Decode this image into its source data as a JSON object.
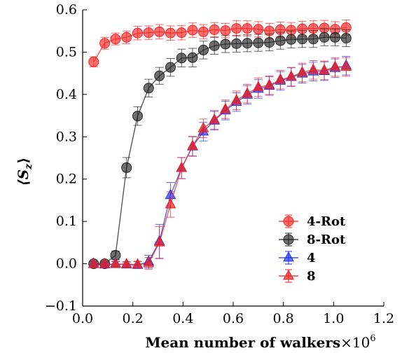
{
  "chart_data": {
    "type": "line",
    "xlabel": "Mean number of walkers",
    "xlabel_multiplier": "×10",
    "xlabel_exponent": "6",
    "ylabel": "⟨S",
    "ylabel_sub": "z",
    "ylabel_close": "⟩",
    "xlim": [
      0.0,
      1.2
    ],
    "ylim": [
      -0.1,
      0.6
    ],
    "xticks": [
      "0.0",
      "0.2",
      "0.4",
      "0.6",
      "0.8",
      "1.0",
      "1.2"
    ],
    "yticks": [
      "−0.1",
      "0.0",
      "0.1",
      "0.2",
      "0.3",
      "0.4",
      "0.5",
      "0.6"
    ],
    "grid": false,
    "legend_position": "bottom-right",
    "series": [
      {
        "name": "4-Rot",
        "marker": "circle",
        "color": "#ff2020",
        "x": [
          0.044,
          0.088,
          0.131,
          0.175,
          0.219,
          0.263,
          0.306,
          0.35,
          0.394,
          0.438,
          0.481,
          0.525,
          0.569,
          0.613,
          0.656,
          0.7,
          0.744,
          0.788,
          0.831,
          0.875,
          0.919,
          0.963,
          1.006,
          1.05
        ],
        "y": [
          0.477,
          0.521,
          0.531,
          0.535,
          0.545,
          0.546,
          0.548,
          0.545,
          0.546,
          0.552,
          0.548,
          0.553,
          0.551,
          0.556,
          0.556,
          0.554,
          0.55,
          0.553,
          0.552,
          0.555,
          0.556,
          0.557,
          0.554,
          0.558
        ],
        "err": [
          0.012,
          0.014,
          0.014,
          0.015,
          0.016,
          0.016,
          0.017,
          0.017,
          0.017,
          0.017,
          0.017,
          0.017,
          0.017,
          0.018,
          0.018,
          0.018,
          0.018,
          0.018,
          0.018,
          0.018,
          0.018,
          0.018,
          0.018,
          0.018
        ]
      },
      {
        "name": "8-Rot",
        "marker": "circle",
        "color": "#222222",
        "x": [
          0.044,
          0.088,
          0.131,
          0.175,
          0.219,
          0.263,
          0.306,
          0.35,
          0.394,
          0.438,
          0.481,
          0.525,
          0.569,
          0.613,
          0.656,
          0.7,
          0.744,
          0.788,
          0.831,
          0.875,
          0.919,
          0.963,
          1.006,
          1.05
        ],
        "y": [
          0.0,
          0.0,
          0.02,
          0.227,
          0.349,
          0.415,
          0.444,
          0.464,
          0.486,
          0.487,
          0.505,
          0.515,
          0.519,
          0.52,
          0.521,
          0.522,
          0.523,
          0.527,
          0.53,
          0.531,
          0.531,
          0.535,
          0.535,
          0.533
        ],
        "err": [
          0.005,
          0.005,
          0.01,
          0.024,
          0.022,
          0.021,
          0.02,
          0.021,
          0.021,
          0.022,
          0.021,
          0.02,
          0.02,
          0.02,
          0.02,
          0.02,
          0.02,
          0.02,
          0.02,
          0.02,
          0.02,
          0.02,
          0.02,
          0.02
        ]
      },
      {
        "name": "4",
        "marker": "triangle",
        "color": "#2233ee",
        "x": [
          0.044,
          0.088,
          0.131,
          0.175,
          0.219,
          0.263,
          0.306,
          0.35,
          0.394,
          0.438,
          0.481,
          0.525,
          0.569,
          0.613,
          0.656,
          0.7,
          0.744,
          0.788,
          0.831,
          0.875,
          0.919,
          0.963,
          1.006,
          1.05
        ],
        "y": [
          0.0,
          -0.002,
          0.0,
          -0.002,
          -0.003,
          0.005,
          0.053,
          0.162,
          0.226,
          0.277,
          0.312,
          0.338,
          0.362,
          0.382,
          0.399,
          0.413,
          0.42,
          0.432,
          0.441,
          0.449,
          0.454,
          0.455,
          0.462,
          0.468
        ],
        "err": [
          0.006,
          0.006,
          0.006,
          0.006,
          0.008,
          0.015,
          0.04,
          0.03,
          0.025,
          0.023,
          0.022,
          0.022,
          0.022,
          0.022,
          0.022,
          0.022,
          0.022,
          0.022,
          0.022,
          0.022,
          0.022,
          0.022,
          0.022,
          0.022
        ]
      },
      {
        "name": "8",
        "marker": "triangle",
        "color": "#ee2020",
        "x": [
          0.044,
          0.088,
          0.131,
          0.175,
          0.219,
          0.263,
          0.306,
          0.35,
          0.394,
          0.438,
          0.481,
          0.525,
          0.569,
          0.613,
          0.656,
          0.7,
          0.744,
          0.788,
          0.831,
          0.875,
          0.919,
          0.963,
          1.006,
          1.05
        ],
        "y": [
          -0.001,
          -0.001,
          -0.001,
          -0.001,
          -0.002,
          0.001,
          0.05,
          0.14,
          0.226,
          0.278,
          0.32,
          0.34,
          0.365,
          0.386,
          0.402,
          0.417,
          0.422,
          0.435,
          0.442,
          0.452,
          0.458,
          0.457,
          0.465,
          0.465
        ],
        "err": [
          0.006,
          0.006,
          0.006,
          0.006,
          0.008,
          0.014,
          0.038,
          0.03,
          0.025,
          0.023,
          0.022,
          0.022,
          0.022,
          0.022,
          0.022,
          0.022,
          0.022,
          0.022,
          0.022,
          0.022,
          0.022,
          0.022,
          0.022,
          0.022
        ]
      }
    ]
  }
}
